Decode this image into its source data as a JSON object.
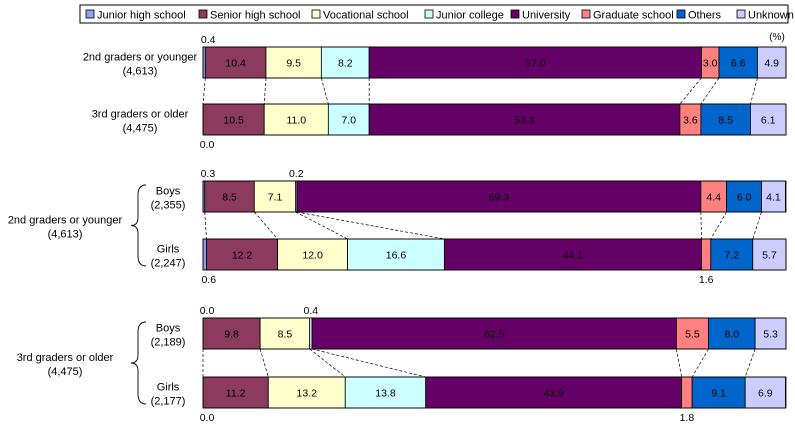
{
  "chart_data": {
    "type": "bar",
    "orientation": "horizontal",
    "stacked": true,
    "normalized": true,
    "unit_label": "(%)",
    "legend_position": "top",
    "categories": [
      "Junior high school",
      "Senior high school",
      "Vocational school",
      "Junior college",
      "University",
      "Graduate school",
      "Others",
      "Unknown"
    ],
    "colors": [
      "#8f9fee",
      "#8c3a5d",
      "#ffffcc",
      "#ccffff",
      "#650066",
      "#ff8080",
      "#0066cc",
      "#ccccff"
    ],
    "rows": [
      {
        "label": "2nd graders or younger",
        "n": "(4,613)",
        "values": [
          0.4,
          10.4,
          9.5,
          8.2,
          57.0,
          3.0,
          6.6,
          4.9
        ]
      },
      {
        "label": "3rd graders or older",
        "n": "(4,475)",
        "values": [
          0.0,
          10.5,
          11.0,
          7.0,
          53.3,
          3.6,
          8.5,
          6.1
        ]
      },
      {
        "label": "Boys",
        "n": "(2,355)",
        "values": [
          0.3,
          8.5,
          7.1,
          0.2,
          69.3,
          4.4,
          6.0,
          4.1
        ]
      },
      {
        "label": "Girls",
        "n": "(2,247)",
        "values": [
          0.6,
          12.2,
          12.0,
          16.6,
          44.1,
          1.6,
          7.2,
          5.7
        ]
      },
      {
        "label": "Boys",
        "n": "(2,189)",
        "values": [
          0.0,
          9.8,
          8.5,
          0.4,
          62.5,
          5.5,
          8.0,
          5.3
        ]
      },
      {
        "label": "Girls",
        "n": "(2,177)",
        "values": [
          0.0,
          11.2,
          13.2,
          13.8,
          43.9,
          1.8,
          9.1,
          6.9
        ]
      }
    ],
    "groups": [
      {
        "label": "2nd graders or younger",
        "n": "(4,613)"
      },
      {
        "label": "3rd graders or older",
        "n": "(4,475)"
      }
    ]
  }
}
